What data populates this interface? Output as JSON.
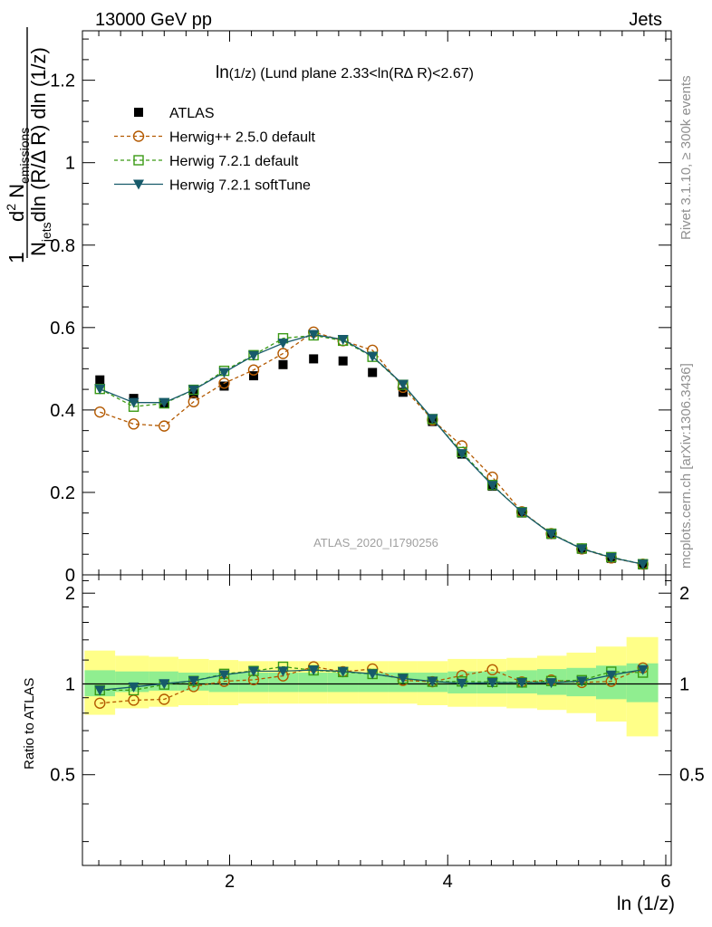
{
  "header": {
    "left": "13000 GeV pp",
    "right": "Jets"
  },
  "side_labels": {
    "rivet": "Rivet 3.1.10, ≥ 300k events",
    "mcplots": "mcplots.cern.ch [arXiv:1306.3436]"
  },
  "watermark": "ATLAS_2020_I1790256",
  "colors": {
    "atlas": "#000000",
    "herwigpp": "#b35900",
    "herwig721": "#3a9a14",
    "softtune": "#175a6a",
    "band_inner": "#90ee90",
    "band_outer": "#ffff88"
  },
  "chart_data": [
    {
      "type": "line",
      "panel": "main",
      "title": "ln(1/z) (Lund plane 2.33<ln(R∆ R)<2.67)",
      "title_parts": {
        "prefix": "ln",
        "sub": "(1/z)",
        "rest": " (Lund plane 2.33<ln(R∆ R)<2.67)"
      },
      "ylabel": "1/N_jets d²N_emissions / dln(R/ΔR) dln(1/z)",
      "ylabel_parts": {
        "one": "1",
        "n": "N",
        "jets": "jets",
        "dln1": "dln (R/Δ R) dln (1/z)",
        "d2": "d",
        "two": "2",
        "N": " N",
        "emissions": "emissions"
      },
      "xlim": [
        0.65,
        6.05
      ],
      "ylim": [
        0,
        1.32
      ],
      "yticks": [
        0.2,
        0.4,
        0.6,
        0.8,
        1,
        1.2
      ],
      "ytick_labels": [
        "0.2",
        "0.4",
        "0.6",
        "0.8",
        "1",
        "1.2"
      ],
      "zero_label": "0",
      "x": [
        0.81,
        1.12,
        1.4,
        1.67,
        1.95,
        2.22,
        2.49,
        2.77,
        3.04,
        3.31,
        3.59,
        3.86,
        4.13,
        4.41,
        4.68,
        4.95,
        5.23,
        5.5,
        5.79
      ],
      "series": [
        {
          "name": "ATLAS",
          "marker": "square",
          "values": [
            0.473,
            0.428,
            0.417,
            0.439,
            0.458,
            0.483,
            0.51,
            0.524,
            0.519,
            0.491,
            0.443,
            0.372,
            0.293,
            0.215,
            0.15,
            0.098,
            0.062,
            0.04,
            0.024
          ]
        },
        {
          "name": "Herwig++ 2.5.0 default",
          "marker": "circle",
          "dashed": true,
          "values": [
            0.395,
            0.366,
            0.361,
            0.42,
            0.465,
            0.497,
            0.537,
            0.589,
            0.568,
            0.545,
            0.455,
            0.376,
            0.313,
            0.237,
            0.153,
            0.1,
            0.063,
            0.041,
            0.026
          ]
        },
        {
          "name": "Herwig 7.2.1 default",
          "marker": "open-square",
          "dashed": true,
          "values": [
            0.451,
            0.408,
            0.416,
            0.449,
            0.495,
            0.533,
            0.574,
            0.581,
            0.568,
            0.529,
            0.461,
            0.378,
            0.298,
            0.218,
            0.152,
            0.1,
            0.064,
            0.043,
            0.026
          ]
        },
        {
          "name": "Herwig 7.2.1 softTune",
          "marker": "triangle-down",
          "values": [
            0.451,
            0.418,
            0.418,
            0.449,
            0.491,
            0.532,
            0.562,
            0.583,
            0.571,
            0.53,
            0.462,
            0.379,
            0.294,
            0.217,
            0.152,
            0.099,
            0.063,
            0.042,
            0.026
          ]
        }
      ]
    },
    {
      "type": "line",
      "panel": "ratio",
      "ylabel": "Ratio to ATLAS",
      "xlabel": "ln (1/z)",
      "xlim": [
        0.65,
        6.05
      ],
      "xticks": [
        2,
        4,
        6
      ],
      "xtick_labels": [
        "2",
        "4",
        "6"
      ],
      "ylim": [
        0.25,
        2.3
      ],
      "yticks": [
        0.5,
        1,
        2
      ],
      "ytick_labels": [
        "0.5",
        "1",
        "2"
      ],
      "bin_edges": [
        0.67,
        0.95,
        1.26,
        1.53,
        1.81,
        2.08,
        2.36,
        2.63,
        2.9,
        3.18,
        3.45,
        3.72,
        4.0,
        4.27,
        4.54,
        4.82,
        5.09,
        5.36,
        5.64,
        5.93
      ],
      "band_inner": [
        [
          0.91,
          1.11
        ],
        [
          0.94,
          1.1
        ],
        [
          0.95,
          1.1
        ],
        [
          0.95,
          1.09
        ],
        [
          0.94,
          1.09
        ],
        [
          0.94,
          1.09
        ],
        [
          0.94,
          1.09
        ],
        [
          0.94,
          1.09
        ],
        [
          0.94,
          1.09
        ],
        [
          0.94,
          1.09
        ],
        [
          0.94,
          1.09
        ],
        [
          0.94,
          1.09
        ],
        [
          0.93,
          1.1
        ],
        [
          0.93,
          1.1
        ],
        [
          0.93,
          1.11
        ],
        [
          0.92,
          1.12
        ],
        [
          0.91,
          1.13
        ],
        [
          0.89,
          1.15
        ],
        [
          0.87,
          1.17
        ]
      ],
      "band_outer": [
        [
          0.79,
          1.29
        ],
        [
          0.83,
          1.24
        ],
        [
          0.84,
          1.23
        ],
        [
          0.85,
          1.21
        ],
        [
          0.85,
          1.2
        ],
        [
          0.86,
          1.19
        ],
        [
          0.86,
          1.19
        ],
        [
          0.86,
          1.19
        ],
        [
          0.86,
          1.19
        ],
        [
          0.86,
          1.19
        ],
        [
          0.86,
          1.19
        ],
        [
          0.85,
          1.19
        ],
        [
          0.84,
          1.21
        ],
        [
          0.84,
          1.21
        ],
        [
          0.83,
          1.22
        ],
        [
          0.82,
          1.24
        ],
        [
          0.8,
          1.27
        ],
        [
          0.75,
          1.33
        ],
        [
          0.67,
          1.43
        ]
      ],
      "series": [
        {
          "name": "Herwig++ 2.5.0 default",
          "values": [
            0.863,
            0.883,
            0.889,
            0.98,
            1.02,
            1.032,
            1.063,
            1.14,
            1.098,
            1.121,
            1.027,
            1.017,
            1.066,
            1.114,
            1.015,
            1.03,
            1.011,
            1.02,
            1.13
          ]
        },
        {
          "name": "Herwig 7.2.1 default",
          "values": [
            0.953,
            0.953,
            0.995,
            1.023,
            1.08,
            1.104,
            1.14,
            1.109,
            1.095,
            1.079,
            1.042,
            1.017,
            1.019,
            1.015,
            1.011,
            1.022,
            1.029,
            1.098,
            1.09
          ]
        },
        {
          "name": "Herwig 7.2.1 softTune",
          "values": [
            0.953,
            0.977,
            1.002,
            1.024,
            1.072,
            1.102,
            1.102,
            1.112,
            1.1,
            1.08,
            1.043,
            1.02,
            1.005,
            1.01,
            1.01,
            1.009,
            1.022,
            1.07,
            1.115
          ]
        }
      ]
    }
  ]
}
